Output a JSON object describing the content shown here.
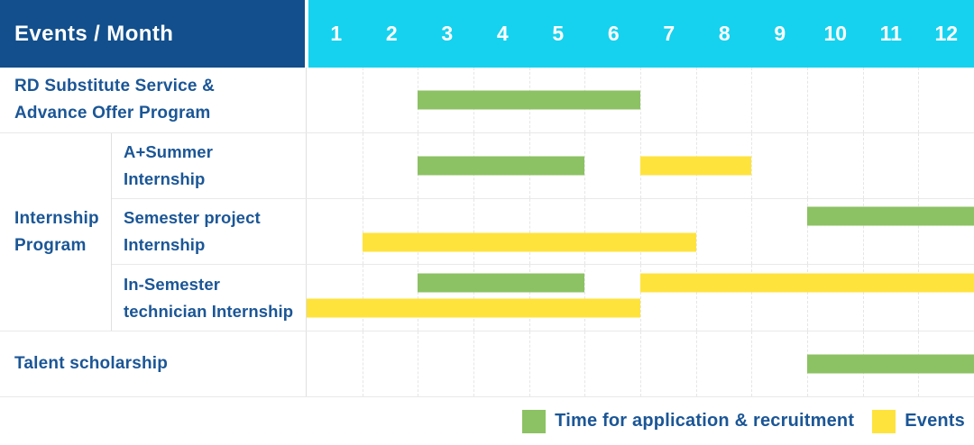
{
  "colors": {
    "header_bg": "#124f8c",
    "months_bg": "#16d2ee",
    "label_text": "#1b5696",
    "grid_line": "#e6e6e6",
    "application_green": "#8cc263",
    "events_yellow": "#ffe33d"
  },
  "chart_data": {
    "type": "gantt",
    "title": "Events / Month",
    "x_axis": {
      "label": "Month",
      "ticks": [
        "1",
        "2",
        "3",
        "4",
        "5",
        "6",
        "7",
        "8",
        "9",
        "10",
        "11",
        "12"
      ],
      "range": [
        1,
        12
      ]
    },
    "legend": [
      {
        "series": "application",
        "label": "Time for application & recruitment",
        "color": "#8cc263"
      },
      {
        "series": "events",
        "label": "Events",
        "color": "#ffe33d"
      }
    ],
    "rows": [
      {
        "kind": "simple",
        "label_lines": [
          "RD Substitute Service &",
          "Advance Offer Program"
        ],
        "bars": [
          {
            "series": "application",
            "start_month": 3,
            "end_month": 6,
            "lane": "center"
          }
        ]
      },
      {
        "kind": "group",
        "label_lines": [
          "Internship",
          "Program"
        ],
        "children": [
          {
            "label_lines": [
              "A+Summer",
              "Internship"
            ],
            "bars": [
              {
                "series": "application",
                "start_month": 3,
                "end_month": 5,
                "lane": "center"
              },
              {
                "series": "events",
                "start_month": 7,
                "end_month": 8,
                "lane": "center"
              }
            ]
          },
          {
            "label_lines": [
              "Semester project",
              "Internship"
            ],
            "bars": [
              {
                "series": "application",
                "start_month": 10,
                "end_month": 12,
                "lane": "top"
              },
              {
                "series": "events",
                "start_month": 2,
                "end_month": 7,
                "lane": "bottom"
              }
            ]
          },
          {
            "label_lines": [
              "In-Semester",
              "technician Internship"
            ],
            "bars": [
              {
                "series": "application",
                "start_month": 3,
                "end_month": 5,
                "lane": "top"
              },
              {
                "series": "events",
                "start_month": 7,
                "end_month": 12,
                "lane": "top"
              },
              {
                "series": "events",
                "start_month": 1,
                "end_month": 6,
                "lane": "bottom"
              }
            ]
          }
        ]
      },
      {
        "kind": "simple",
        "label_lines": [
          "Talent scholarship"
        ],
        "bars": [
          {
            "series": "application",
            "start_month": 10,
            "end_month": 12,
            "lane": "center"
          }
        ]
      }
    ]
  }
}
